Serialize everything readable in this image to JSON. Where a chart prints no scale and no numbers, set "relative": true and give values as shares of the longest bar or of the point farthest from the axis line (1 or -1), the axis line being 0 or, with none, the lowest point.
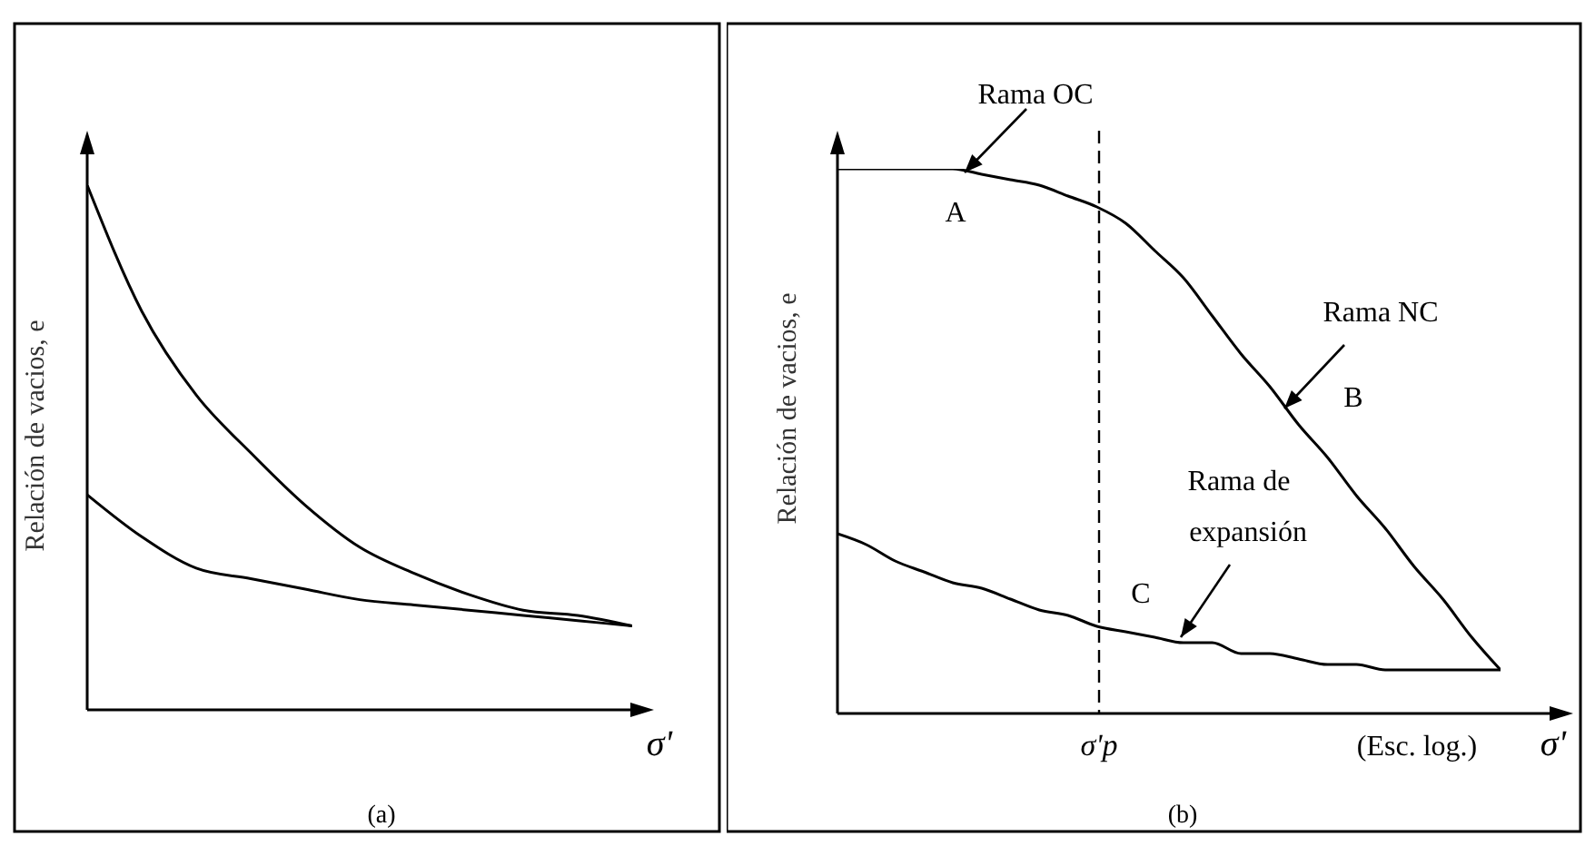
{
  "chart_data": [
    {
      "type": "line",
      "title": "(a)",
      "xlabel": "σ'",
      "ylabel": "Relación de vacios, e",
      "relative": true,
      "categories": [
        null,
        null,
        null,
        null,
        null,
        null,
        null,
        null,
        null,
        null,
        null
      ],
      "series": [
        {
          "color": "#000000",
          "values": [
            1,
            0.76,
            0.6,
            0.49,
            0.39,
            0.31,
            0.26,
            0.22,
            0.19,
            0.18,
            0.16
          ]
        },
        {
          "color": "#000000",
          "values": [
            0.41,
            0.33,
            0.27,
            0.25,
            0.23,
            0.21,
            0.2,
            0.19,
            0.18,
            0.17,
            0.16
          ]
        }
      ]
    },
    {
      "type": "line",
      "title": "(b)",
      "xlabel": "σ'",
      "ylabel": "Relación de vacios, e",
      "relative": true,
      "categories": [
        null,
        null,
        null,
        null,
        null,
        null,
        null,
        null,
        null,
        null,
        null,
        null,
        null,
        null,
        null,
        null,
        null,
        null,
        null,
        null,
        null,
        null,
        null,
        null
      ],
      "series": [
        {
          "color": "#000000",
          "values": [
            1,
            1,
            1,
            1,
            1,
            0.99,
            0.98,
            0.97,
            0.95,
            0.93,
            0.9,
            0.85,
            0.8,
            0.73,
            0.66,
            0.6,
            0.53,
            0.47,
            0.4,
            0.34,
            0.27,
            0.21,
            0.14,
            0.08
          ]
        },
        {
          "color": "#000000",
          "values": [
            0.33,
            0.31,
            0.28,
            0.26,
            0.24,
            0.23,
            0.21,
            0.19,
            0.18,
            0.16,
            0.15,
            0.14,
            0.13,
            0.13,
            0.11,
            0.11,
            0.1,
            0.09,
            0.09,
            0.08,
            0.08,
            0.08,
            0.08,
            0.08
          ]
        }
      ],
      "annotations": [
        "Rama OC",
        "A",
        "Rama NC",
        "B",
        "Rama de expansión",
        "C",
        "(Esc. log.)",
        "σ'p"
      ]
    }
  ]
}
